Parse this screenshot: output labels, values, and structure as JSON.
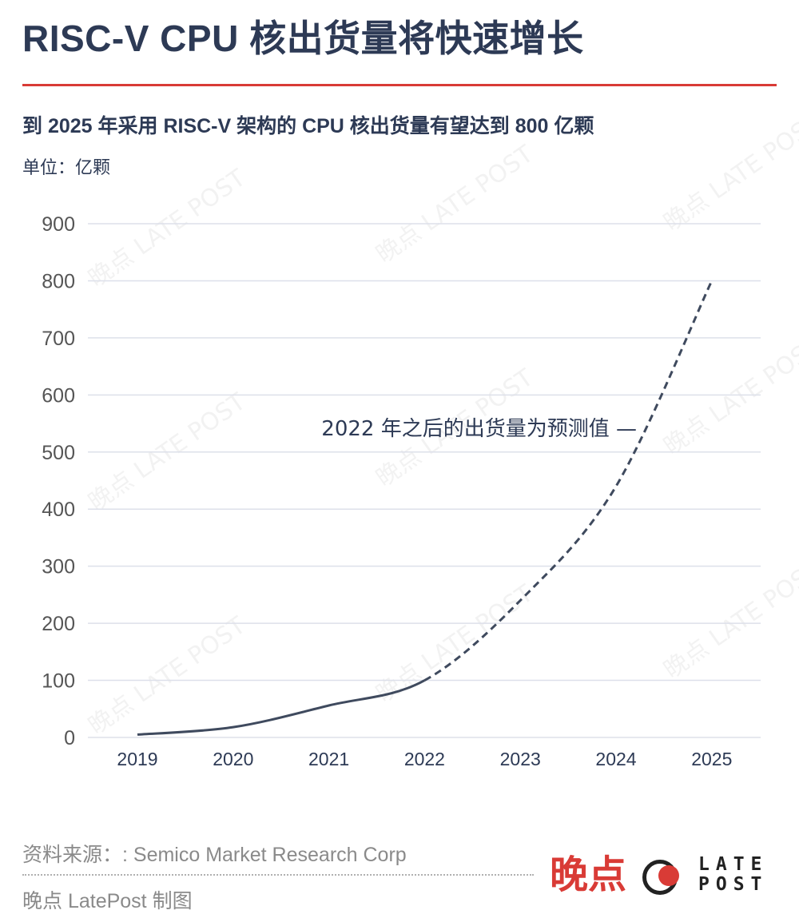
{
  "header": {
    "title": "RISC-V CPU 核出货量将快速增长",
    "subtitle": "到 2025 年采用 RISC-V 架构的 CPU 核出货量有望达到 800 亿颗",
    "unit": "单位：亿颗"
  },
  "chart_data": {
    "type": "line",
    "title": "RISC-V CPU 核出货量将快速增长",
    "subtitle": "到 2025 年采用 RISC-V 架构的 CPU 核出货量有望达到 800 亿颗",
    "ylabel": "单位：亿颗",
    "xlabel": "",
    "categories": [
      "2019",
      "2020",
      "2021",
      "2022",
      "2023",
      "2024",
      "2025"
    ],
    "series": [
      {
        "values": [
          5,
          18,
          56,
          100,
          240,
          440,
          800
        ],
        "actual_through": "2022",
        "forecast_style": "dashed"
      }
    ],
    "yticks": [
      0,
      100,
      200,
      300,
      400,
      500,
      600,
      700,
      800,
      900
    ],
    "ylim": [
      0,
      900
    ],
    "grid": true,
    "annotation": "2022 年之后的出货量为预测值 —",
    "line_color": "#3f4a5e",
    "grid_color": "#dde0ea"
  },
  "footer": {
    "source": "资料来源：: Semico Market Research Corp",
    "credit": "晚点 LatePost 制图",
    "logo_cn": "晚点",
    "logo_en_line1": "LATE",
    "logo_en_line2": "POST",
    "watermark": "晚点 LATE POST",
    "accent": "#d93b36"
  }
}
